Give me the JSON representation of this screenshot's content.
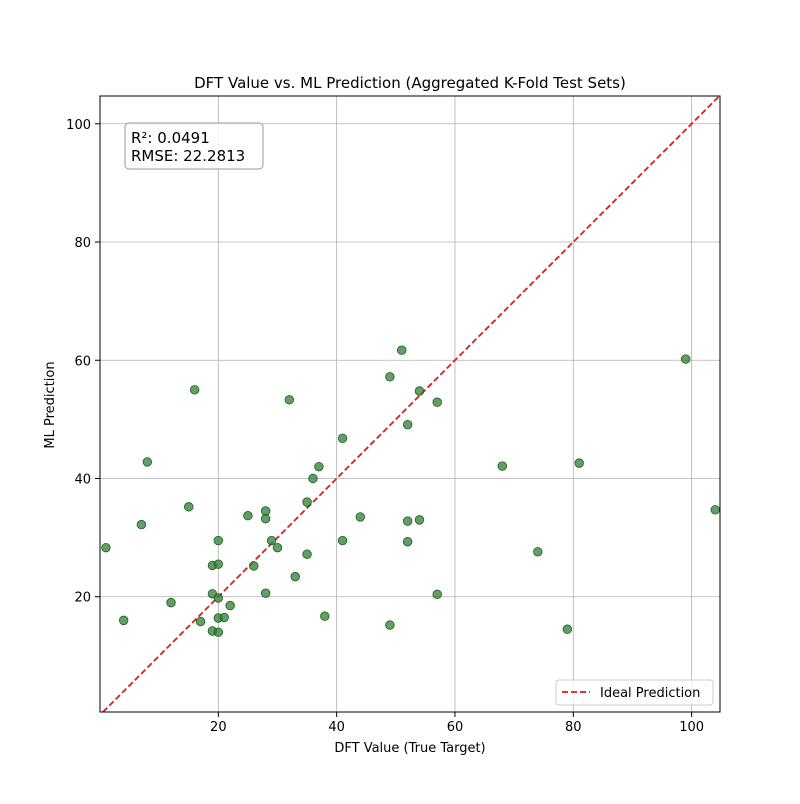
{
  "chart_data": {
    "type": "scatter",
    "title": "DFT Value vs. ML Prediction (Aggregated K-Fold Test Sets)",
    "xlabel": "DFT Value (True Target)",
    "ylabel": "ML Prediction",
    "xlim": [
      0,
      104.8
    ],
    "ylim": [
      0.5,
      104.7
    ],
    "xticks": [
      20,
      40,
      60,
      80,
      100
    ],
    "yticks": [
      20,
      40,
      60,
      80,
      100
    ],
    "grid": true,
    "stats": {
      "r2_label": "R²: 0.0491",
      "rmse_label": "RMSE: 22.2813"
    },
    "legend": {
      "position": "bottom-right",
      "entries": [
        {
          "label": "Ideal Prediction",
          "color": "#e41a1c",
          "style": "dashed"
        }
      ]
    },
    "ideal_line": {
      "label": "Ideal Prediction",
      "color": "#e41a1c"
    },
    "series": [
      {
        "marker_color": "#2e7d32",
        "points": [
          [
            1,
            28.3
          ],
          [
            4,
            16
          ],
          [
            7,
            32.2
          ],
          [
            8,
            42.8
          ],
          [
            12,
            19
          ],
          [
            15,
            35.2
          ],
          [
            16,
            55
          ],
          [
            17,
            15.8
          ],
          [
            19,
            25.3
          ],
          [
            19,
            20.5
          ],
          [
            19,
            14.2
          ],
          [
            20,
            29.5
          ],
          [
            20,
            25.5
          ],
          [
            20,
            19.8
          ],
          [
            20,
            16.4
          ],
          [
            20,
            14
          ],
          [
            21,
            16.5
          ],
          [
            22,
            18.5
          ],
          [
            25,
            33.7
          ],
          [
            26,
            25.2
          ],
          [
            28,
            34.5
          ],
          [
            28,
            33.2
          ],
          [
            28,
            20.6
          ],
          [
            29,
            29.5
          ],
          [
            30,
            28.3
          ],
          [
            32,
            53.3
          ],
          [
            33,
            23.4
          ],
          [
            35,
            36
          ],
          [
            35,
            27.2
          ],
          [
            36,
            40
          ],
          [
            37,
            42
          ],
          [
            38,
            16.7
          ],
          [
            41,
            46.8
          ],
          [
            41,
            29.5
          ],
          [
            44,
            33.5
          ],
          [
            49,
            57.2
          ],
          [
            49,
            15.2
          ],
          [
            51,
            61.7
          ],
          [
            52,
            49.1
          ],
          [
            52,
            32.8
          ],
          [
            52,
            29.3
          ],
          [
            54,
            54.8
          ],
          [
            54,
            33
          ],
          [
            57,
            52.9
          ],
          [
            57,
            20.4
          ],
          [
            68,
            42.1
          ],
          [
            74,
            27.6
          ],
          [
            79,
            14.5
          ],
          [
            81,
            42.6
          ],
          [
            99,
            60.2
          ],
          [
            104,
            34.7
          ]
        ]
      }
    ]
  }
}
